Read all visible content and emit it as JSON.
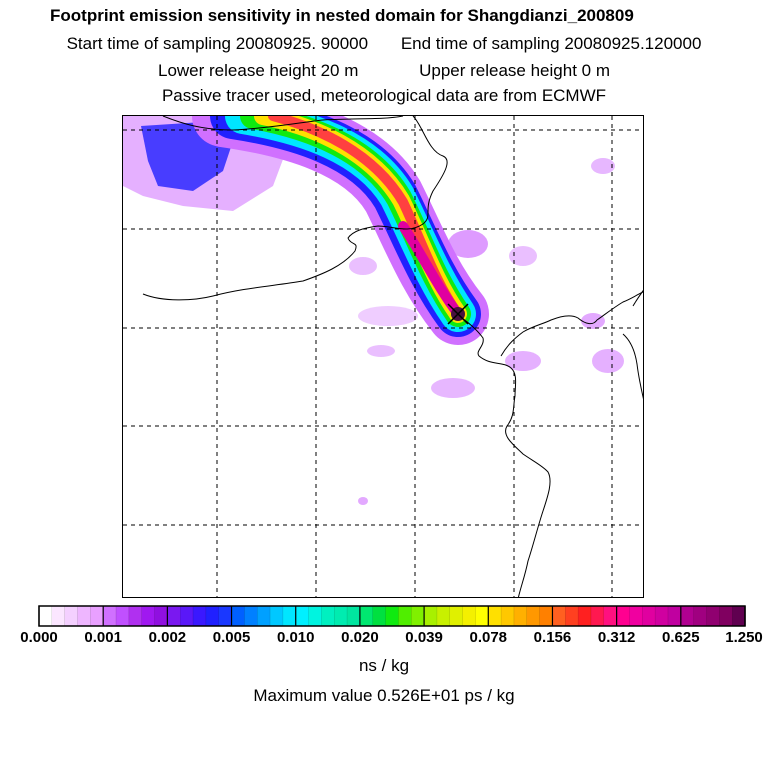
{
  "header": {
    "title": "Footprint emission sensitivity in nested domain for Shangdianzi_200809",
    "start_label": "Start time of sampling",
    "start_value": "20080925. 90000",
    "end_label": "End time of sampling",
    "end_value": "20080925.120000",
    "lower_label": "Lower release height",
    "lower_value": "20 m",
    "upper_label": "Upper release height",
    "upper_value": "0 m",
    "note": "Passive tracer used, meteorological data are from ECMWF"
  },
  "colorbar": {
    "labels": [
      "0.000",
      "0.001",
      "0.002",
      "0.005",
      "0.010",
      "0.020",
      "0.039",
      "0.078",
      "0.156",
      "0.312",
      "0.625",
      "1.250"
    ],
    "colors": [
      "#ffffff",
      "#fbe6ff",
      "#f4d0ff",
      "#eeb6ff",
      "#e9a0ff",
      "#d070ff",
      "#c050ff",
      "#b030f0",
      "#a018f0",
      "#9010e0",
      "#7a18f0",
      "#5a18f8",
      "#3a18ff",
      "#2020ff",
      "#1a38ff",
      "#0060ff",
      "#0080ff",
      "#00a0ff",
      "#00c8ff",
      "#00e6ff",
      "#00f0ff",
      "#00f4e0",
      "#00f0c0",
      "#00ecb0",
      "#00e6a0",
      "#00e870",
      "#00e040",
      "#10ea10",
      "#50ee00",
      "#80f000",
      "#a8f000",
      "#c8f000",
      "#e0f000",
      "#f4f000",
      "#ffff00",
      "#ffe000",
      "#ffc800",
      "#ffb000",
      "#ff9800",
      "#ff8000",
      "#ff6020",
      "#ff4020",
      "#ff2020",
      "#ff1850",
      "#ff1080",
      "#ff0090",
      "#f000a0",
      "#e000a0",
      "#d000a0",
      "#c000a0",
      "#b00090",
      "#a00080",
      "#900070",
      "#800060",
      "#600050"
    ],
    "units": "ns / kg"
  },
  "max_value_text": "Maximum value  0.526E+01 ps / kg",
  "map_colors": {
    "plume_outer": "#d070ff",
    "plume_blue": "#2020ff",
    "plume_cyan": "#00e6ff",
    "plume_green": "#10ea10",
    "plume_yellow": "#ffe000",
    "plume_red": "#ff4040",
    "plume_core": "#e000a0",
    "receptor": "#4a1040"
  }
}
